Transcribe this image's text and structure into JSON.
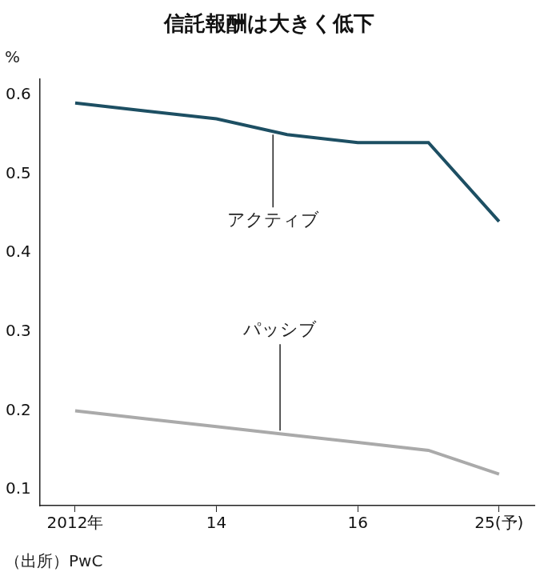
{
  "chart_data": {
    "type": "line",
    "title": "信託報酬は大きく低下",
    "y_label": "%",
    "source": "（出所）PwC",
    "categories": [
      "2012年",
      null,
      "14",
      null,
      "16",
      null,
      "25(予)"
    ],
    "series": [
      {
        "name": "アクティブ",
        "color": "#1d4f63",
        "values": [
          0.59,
          0.58,
          0.57,
          0.55,
          0.54,
          0.54,
          0.44
        ]
      },
      {
        "name": "パッシブ",
        "color": "#aaaaaa",
        "values": [
          0.2,
          0.19,
          0.18,
          0.17,
          0.16,
          0.15,
          0.12
        ]
      }
    ],
    "ylim": [
      0.08,
      0.62
    ],
    "yticks": [
      0.1,
      0.2,
      0.3,
      0.4,
      0.5,
      0.6
    ],
    "grid": false,
    "tick_labels": true
  }
}
